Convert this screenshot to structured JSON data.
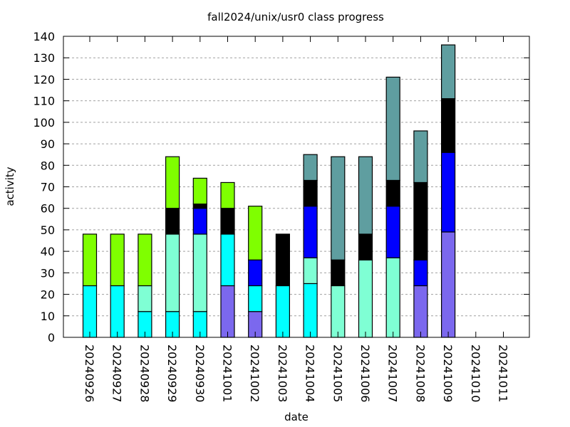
{
  "chart_data": {
    "type": "bar",
    "stacked": true,
    "title": "fall2024/unix/usr0 class progress",
    "xlabel": "date",
    "ylabel": "activity",
    "ylim": [
      0,
      140
    ],
    "yticks": [
      0,
      10,
      20,
      30,
      40,
      50,
      60,
      70,
      80,
      90,
      100,
      110,
      120,
      130,
      140
    ],
    "grid": true,
    "legend": "none",
    "categories": [
      "20240926",
      "20240927",
      "20240928",
      "20240929",
      "20240930",
      "20241001",
      "20241002",
      "20241003",
      "20241004",
      "20241005",
      "20241006",
      "20241007",
      "20241008",
      "20241009",
      "20241010",
      "20241011"
    ],
    "series": [
      {
        "color": "#7b68ee",
        "values": [
          0,
          0,
          0,
          0,
          0,
          24,
          12,
          0,
          0,
          0,
          0,
          0,
          24,
          49,
          0,
          0
        ]
      },
      {
        "color": "#00ffff",
        "values": [
          24,
          24,
          12,
          12,
          12,
          24,
          12,
          24,
          25,
          0,
          0,
          0,
          0,
          0,
          0,
          0
        ]
      },
      {
        "color": "#7fffd4",
        "values": [
          0,
          0,
          12,
          36,
          36,
          0,
          0,
          0,
          12,
          24,
          36,
          37,
          0,
          0,
          0,
          0
        ]
      },
      {
        "color": "#0000ff",
        "values": [
          0,
          0,
          0,
          0,
          12,
          0,
          12,
          0,
          24,
          0,
          0,
          24,
          12,
          37,
          0,
          0
        ]
      },
      {
        "color": "#000000",
        "values": [
          0,
          0,
          0,
          12,
          2,
          12,
          0,
          24,
          12,
          12,
          12,
          12,
          36,
          25,
          0,
          0
        ]
      },
      {
        "color": "#7fff00",
        "values": [
          24,
          24,
          24,
          24,
          12,
          12,
          25,
          0,
          0,
          0,
          0,
          0,
          0,
          0,
          0,
          0
        ]
      },
      {
        "color": "#5f9ea0",
        "values": [
          0,
          0,
          0,
          0,
          0,
          0,
          0,
          0,
          12,
          48,
          36,
          48,
          24,
          25,
          0,
          0
        ]
      }
    ]
  }
}
